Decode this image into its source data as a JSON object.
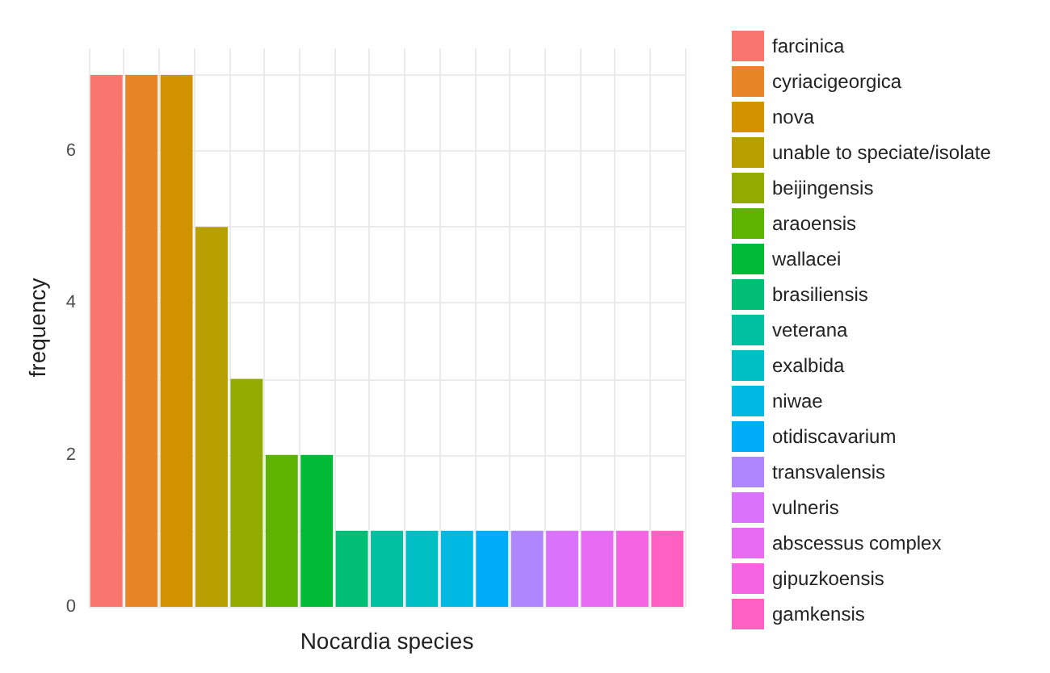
{
  "chart_data": {
    "type": "bar",
    "xlabel": "Nocardia species",
    "ylabel": "frequency",
    "categories": [
      null,
      null,
      null,
      null,
      null,
      null,
      null,
      null,
      null,
      null,
      null,
      null,
      null,
      null,
      null,
      null,
      null
    ],
    "legend": "right",
    "grid": true,
    "ylim": [
      0,
      7.35
    ],
    "yticks": [
      0,
      {
        "value": 1,
        "label": null
      },
      2,
      {
        "value": 3,
        "label": null
      },
      4,
      {
        "value": 5,
        "label": null
      },
      6,
      {
        "value": 7,
        "label": null
      }
    ],
    "series": [
      {
        "name": "farcinica",
        "color": "#F8766D",
        "values": [
          7,
          null,
          null,
          null,
          null,
          null,
          null,
          null,
          null,
          null,
          null,
          null,
          null,
          null,
          null,
          null,
          null
        ]
      },
      {
        "name": "cyriacigeorgica",
        "color": "#E88526",
        "values": [
          null,
          7,
          null,
          null,
          null,
          null,
          null,
          null,
          null,
          null,
          null,
          null,
          null,
          null,
          null,
          null,
          null
        ]
      },
      {
        "name": "nova",
        "color": "#D39200",
        "values": [
          null,
          null,
          7,
          null,
          null,
          null,
          null,
          null,
          null,
          null,
          null,
          null,
          null,
          null,
          null,
          null,
          null
        ]
      },
      {
        "name": "unable to speciate/isolate",
        "color": "#B79F00",
        "values": [
          null,
          null,
          null,
          5,
          null,
          null,
          null,
          null,
          null,
          null,
          null,
          null,
          null,
          null,
          null,
          null,
          null
        ]
      },
      {
        "name": "beijingensis",
        "color": "#93AA00",
        "values": [
          null,
          null,
          null,
          null,
          3,
          null,
          null,
          null,
          null,
          null,
          null,
          null,
          null,
          null,
          null,
          null,
          null
        ]
      },
      {
        "name": "araoensis",
        "color": "#5EB300",
        "values": [
          null,
          null,
          null,
          null,
          null,
          2,
          null,
          null,
          null,
          null,
          null,
          null,
          null,
          null,
          null,
          null,
          null
        ]
      },
      {
        "name": "wallacei",
        "color": "#00BA38",
        "values": [
          null,
          null,
          null,
          null,
          null,
          null,
          2,
          null,
          null,
          null,
          null,
          null,
          null,
          null,
          null,
          null,
          null
        ]
      },
      {
        "name": "brasiliensis",
        "color": "#00BF74",
        "values": [
          null,
          null,
          null,
          null,
          null,
          null,
          null,
          1,
          null,
          null,
          null,
          null,
          null,
          null,
          null,
          null,
          null
        ]
      },
      {
        "name": "veterana",
        "color": "#00C19F",
        "values": [
          null,
          null,
          null,
          null,
          null,
          null,
          null,
          null,
          1,
          null,
          null,
          null,
          null,
          null,
          null,
          null,
          null
        ]
      },
      {
        "name": "exalbida",
        "color": "#00BFC4",
        "values": [
          null,
          null,
          null,
          null,
          null,
          null,
          null,
          null,
          null,
          1,
          null,
          null,
          null,
          null,
          null,
          null,
          null
        ]
      },
      {
        "name": "niwae",
        "color": "#00B9E3",
        "values": [
          null,
          null,
          null,
          null,
          null,
          null,
          null,
          null,
          null,
          null,
          1,
          null,
          null,
          null,
          null,
          null,
          null
        ]
      },
      {
        "name": "otidiscavarium",
        "color": "#00ADFA",
        "values": [
          null,
          null,
          null,
          null,
          null,
          null,
          null,
          null,
          null,
          null,
          null,
          1,
          null,
          null,
          null,
          null,
          null
        ]
      },
      {
        "name": "transvalensis",
        "color": "#AE87FF",
        "values": [
          null,
          null,
          null,
          null,
          null,
          null,
          null,
          null,
          null,
          null,
          null,
          null,
          1,
          null,
          null,
          null,
          null
        ]
      },
      {
        "name": "vulneris",
        "color": "#DB72FB",
        "values": [
          null,
          null,
          null,
          null,
          null,
          null,
          null,
          null,
          null,
          null,
          null,
          null,
          null,
          1,
          null,
          null,
          null
        ]
      },
      {
        "name": "abscessus complex",
        "color": "#E76BF3",
        "values": [
          null,
          null,
          null,
          null,
          null,
          null,
          null,
          null,
          null,
          null,
          null,
          null,
          null,
          null,
          1,
          null,
          null
        ]
      },
      {
        "name": "gipuzkoensis",
        "color": "#F564E3",
        "values": [
          null,
          null,
          null,
          null,
          null,
          null,
          null,
          null,
          null,
          null,
          null,
          null,
          null,
          null,
          null,
          1,
          null
        ]
      },
      {
        "name": "gamkensis",
        "color": "#FF61C3",
        "values": [
          null,
          null,
          null,
          null,
          null,
          null,
          null,
          null,
          null,
          null,
          null,
          null,
          null,
          null,
          null,
          null,
          1
        ]
      }
    ]
  }
}
